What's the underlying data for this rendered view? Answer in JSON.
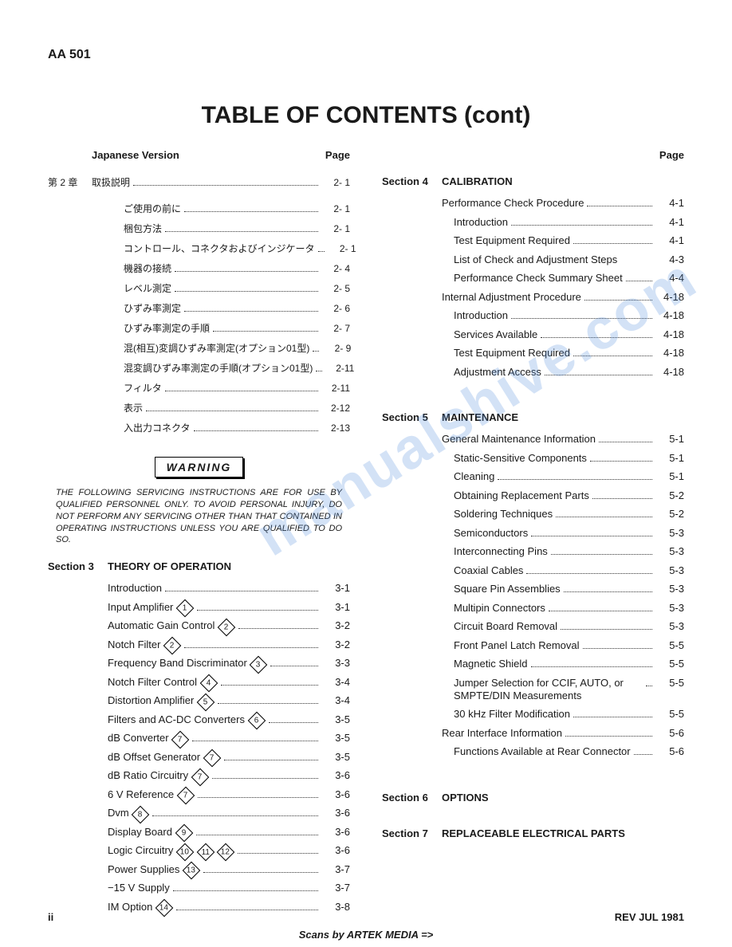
{
  "header_code": "AA 501",
  "main_title": "TABLE OF CONTENTS (cont)",
  "page_label": "Page",
  "japanese_version_label": "Japanese Version",
  "jp_chapter_label": "第 2 章",
  "jp_chapter_title": "取扱説明",
  "jp_chapter_page": "2- 1",
  "jp_items": [
    {
      "label": "ご使用の前に",
      "page": "2- 1"
    },
    {
      "label": "梱包方法",
      "page": "2- 1"
    },
    {
      "label": "コントロール、コネクタおよびインジケータ",
      "page": "2- 1"
    },
    {
      "label": "機器の接続",
      "page": "2- 4"
    },
    {
      "label": "レベル測定",
      "page": "2- 5"
    },
    {
      "label": "ひずみ率測定",
      "page": "2- 6"
    },
    {
      "label": "ひずみ率測定の手順",
      "page": "2- 7"
    },
    {
      "label": "混(相互)変調ひずみ率測定(オプション01型)",
      "page": "2- 9"
    },
    {
      "label": "混変調ひずみ率測定の手順(オプション01型)",
      "page": "2-11"
    },
    {
      "label": "フィルタ",
      "page": "2-11"
    },
    {
      "label": "表示",
      "page": "2-12"
    },
    {
      "label": "入出力コネクタ",
      "page": "2-13"
    }
  ],
  "warning_title": "WARNING",
  "warning_text": "THE FOLLOWING SERVICING INSTRUCTIONS ARE FOR USE BY QUALIFIED PERSONNEL ONLY. TO AVOID PERSONAL INJURY, DO NOT PERFORM ANY SERVICING OTHER THAN THAT CONTAINED IN OPERATING INSTRUCTIONS UNLESS YOU ARE QUALIFIED TO DO SO.",
  "section3": {
    "label": "Section 3",
    "title": "THEORY OF OPERATION",
    "items": [
      {
        "label": "Introduction",
        "diamond": null,
        "page": "3-1"
      },
      {
        "label": "Input Amplifier",
        "diamond": "1",
        "page": "3-1"
      },
      {
        "label": "Automatic Gain Control",
        "diamond": "2",
        "page": "3-2"
      },
      {
        "label": "Notch Filter",
        "diamond": "2",
        "page": "3-2"
      },
      {
        "label": "Frequency Band Discriminator",
        "diamond": "3",
        "page": "3-3"
      },
      {
        "label": "Notch Filter Control",
        "diamond": "4",
        "page": "3-4"
      },
      {
        "label": "Distortion Amplifier",
        "diamond": "5",
        "page": "3-4"
      },
      {
        "label": "Filters and AC-DC Converters",
        "diamond": "6",
        "page": "3-5"
      },
      {
        "label": "dB Converter",
        "diamond": "7",
        "page": "3-5"
      },
      {
        "label": "dB Offset Generator",
        "diamond": "7",
        "page": "3-5"
      },
      {
        "label": "dB Ratio Circuitry",
        "diamond": "7",
        "page": "3-6"
      },
      {
        "label": "6 V Reference",
        "diamond": "7",
        "page": "3-6"
      },
      {
        "label": "Dvm",
        "diamond": "8",
        "page": "3-6"
      },
      {
        "label": "Display Board",
        "diamond": "9",
        "page": "3-6"
      },
      {
        "label": "Logic Circuitry",
        "diamonds": [
          "10",
          "11",
          "12"
        ],
        "page": "3-6"
      },
      {
        "label": "Power Supplies",
        "diamond": "13",
        "page": "3-7"
      },
      {
        "label": "−15 V Supply",
        "diamond": null,
        "page": "3-7"
      },
      {
        "label": "IM Option",
        "diamond": "14",
        "page": "3-8"
      }
    ]
  },
  "section4": {
    "label": "Section 4",
    "title": "CALIBRATION",
    "groups": [
      {
        "heading": {
          "label": "Performance Check Procedure",
          "page": "4-1"
        },
        "items": [
          {
            "label": "Introduction",
            "page": "4-1"
          },
          {
            "label": "Test Equipment Required",
            "page": "4-1"
          },
          {
            "label": "List of Check and Adjustment Steps",
            "page": "4-3",
            "nodots": true
          },
          {
            "label": "Performance Check Summary Sheet",
            "page": "4-4",
            "multiline": true
          }
        ]
      },
      {
        "heading": {
          "label": "Internal Adjustment Procedure",
          "page": "4-18"
        },
        "items": [
          {
            "label": "Introduction",
            "page": "4-18"
          },
          {
            "label": "Services Available",
            "page": "4-18"
          },
          {
            "label": "Test Equipment Required",
            "page": "4-18"
          },
          {
            "label": "Adjustment Access",
            "page": "4-18"
          }
        ]
      }
    ]
  },
  "section5": {
    "label": "Section 5",
    "title": "MAINTENANCE",
    "groups": [
      {
        "heading": {
          "label": "General Maintenance Information",
          "page": "5-1"
        },
        "items": [
          {
            "label": "Static-Sensitive Components",
            "page": "5-1"
          },
          {
            "label": "Cleaning",
            "page": "5-1"
          },
          {
            "label": "Obtaining Replacement Parts",
            "page": "5-2"
          },
          {
            "label": "Soldering Techniques",
            "page": "5-2"
          },
          {
            "label": "Semiconductors",
            "page": "5-3"
          },
          {
            "label": "Interconnecting Pins",
            "page": "5-3"
          },
          {
            "label": "Coaxial Cables",
            "page": "5-3"
          },
          {
            "label": "Square Pin Assemblies",
            "page": "5-3"
          },
          {
            "label": "Multipin Connectors",
            "page": "5-3"
          },
          {
            "label": "Circuit Board Removal",
            "page": "5-3"
          },
          {
            "label": "Front Panel Latch Removal",
            "page": "5-5"
          },
          {
            "label": "Magnetic Shield",
            "page": "5-5"
          },
          {
            "label": "Jumper Selection for CCIF, AUTO, or SMPTE/DIN Measurements",
            "page": "5-5",
            "multiline": true
          },
          {
            "label": "30 kHz Filter Modification",
            "page": "5-5"
          }
        ]
      },
      {
        "heading": {
          "label": "Rear Interface Information",
          "page": "5-6"
        },
        "items": [
          {
            "label": "Functions Available at Rear Connector",
            "page": "5-6",
            "multiline": true
          }
        ]
      }
    ]
  },
  "section6": {
    "label": "Section 6",
    "title": "OPTIONS"
  },
  "section7": {
    "label": "Section 7",
    "title": "REPLACEABLE ELECTRICAL PARTS"
  },
  "footer_left": "ii",
  "footer_right": "REV JUL 1981",
  "scans_by": "Scans by ARTEK MEDIA =>",
  "watermark": "manualshive.com"
}
